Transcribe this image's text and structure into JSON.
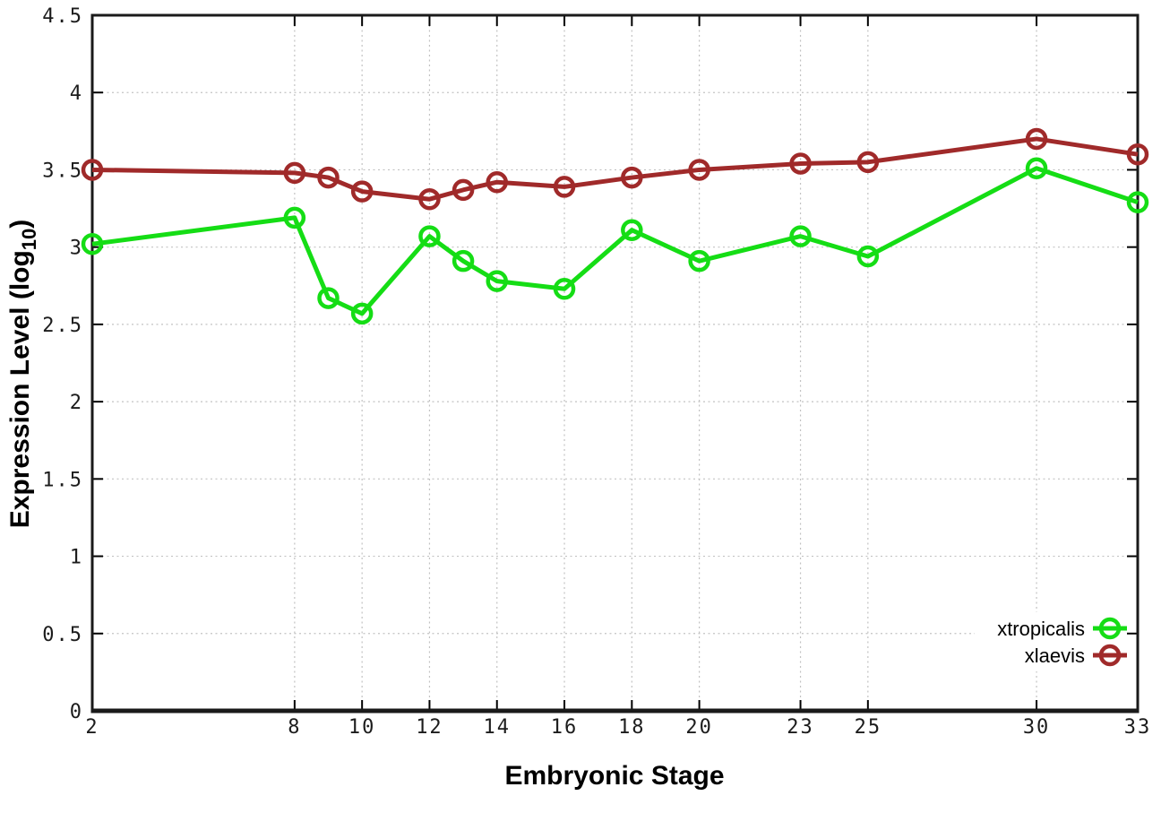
{
  "page": {
    "background": "#ffffff"
  },
  "chart_data": {
    "type": "line",
    "title": "",
    "xlabel": "Embryonic Stage",
    "ylabel": "Expression Level (log10)",
    "ylabel_parts": {
      "main": "Expression Level (log",
      "sub": "10",
      "close": ")"
    },
    "xlim": [
      2,
      33
    ],
    "ylim": [
      0,
      4.5
    ],
    "grid": true,
    "legend_position": "bottom-right",
    "x_ticks": [
      {
        "v": 2,
        "label": "2"
      },
      {
        "v": 8,
        "label": "8"
      },
      {
        "v": 10,
        "label": "10"
      },
      {
        "v": 12,
        "label": "12"
      },
      {
        "v": 14,
        "label": "14"
      },
      {
        "v": 16,
        "label": "16"
      },
      {
        "v": 18,
        "label": "18"
      },
      {
        "v": 20,
        "label": "20"
      },
      {
        "v": 23,
        "label": "23"
      },
      {
        "v": 25,
        "label": "25"
      },
      {
        "v": 30,
        "label": "30"
      },
      {
        "v": 33,
        "label": "33"
      }
    ],
    "y_ticks": [
      {
        "v": 0,
        "label": "0"
      },
      {
        "v": 0.5,
        "label": "0.5"
      },
      {
        "v": 1,
        "label": "1"
      },
      {
        "v": 1.5,
        "label": "1.5"
      },
      {
        "v": 2,
        "label": "2"
      },
      {
        "v": 2.5,
        "label": "2.5"
      },
      {
        "v": 3,
        "label": "3"
      },
      {
        "v": 3.5,
        "label": "3.5"
      },
      {
        "v": 4,
        "label": "4"
      },
      {
        "v": 4.5,
        "label": "4.5"
      }
    ],
    "x": [
      2,
      8,
      9,
      10,
      12,
      13,
      14,
      16,
      18,
      20,
      23,
      25,
      30,
      33
    ],
    "series": [
      {
        "name": "xtropicalis",
        "color": "#15dd15",
        "marker": "open-circle",
        "values": [
          3.02,
          3.19,
          2.67,
          2.57,
          3.07,
          2.91,
          2.78,
          2.73,
          3.11,
          2.91,
          3.07,
          2.94,
          3.51,
          3.29
        ]
      },
      {
        "name": "xlaevis",
        "color": "#a02a2a",
        "marker": "open-circle",
        "values": [
          3.5,
          3.48,
          3.45,
          3.36,
          3.31,
          3.37,
          3.42,
          3.39,
          3.45,
          3.5,
          3.54,
          3.55,
          3.7,
          3.6
        ]
      }
    ]
  },
  "style": {
    "grid_color": "#c2c2c2",
    "axis_color": "#1a1a1a",
    "tick_color": "#000000",
    "tick_label_color": "#1c1c1c"
  }
}
